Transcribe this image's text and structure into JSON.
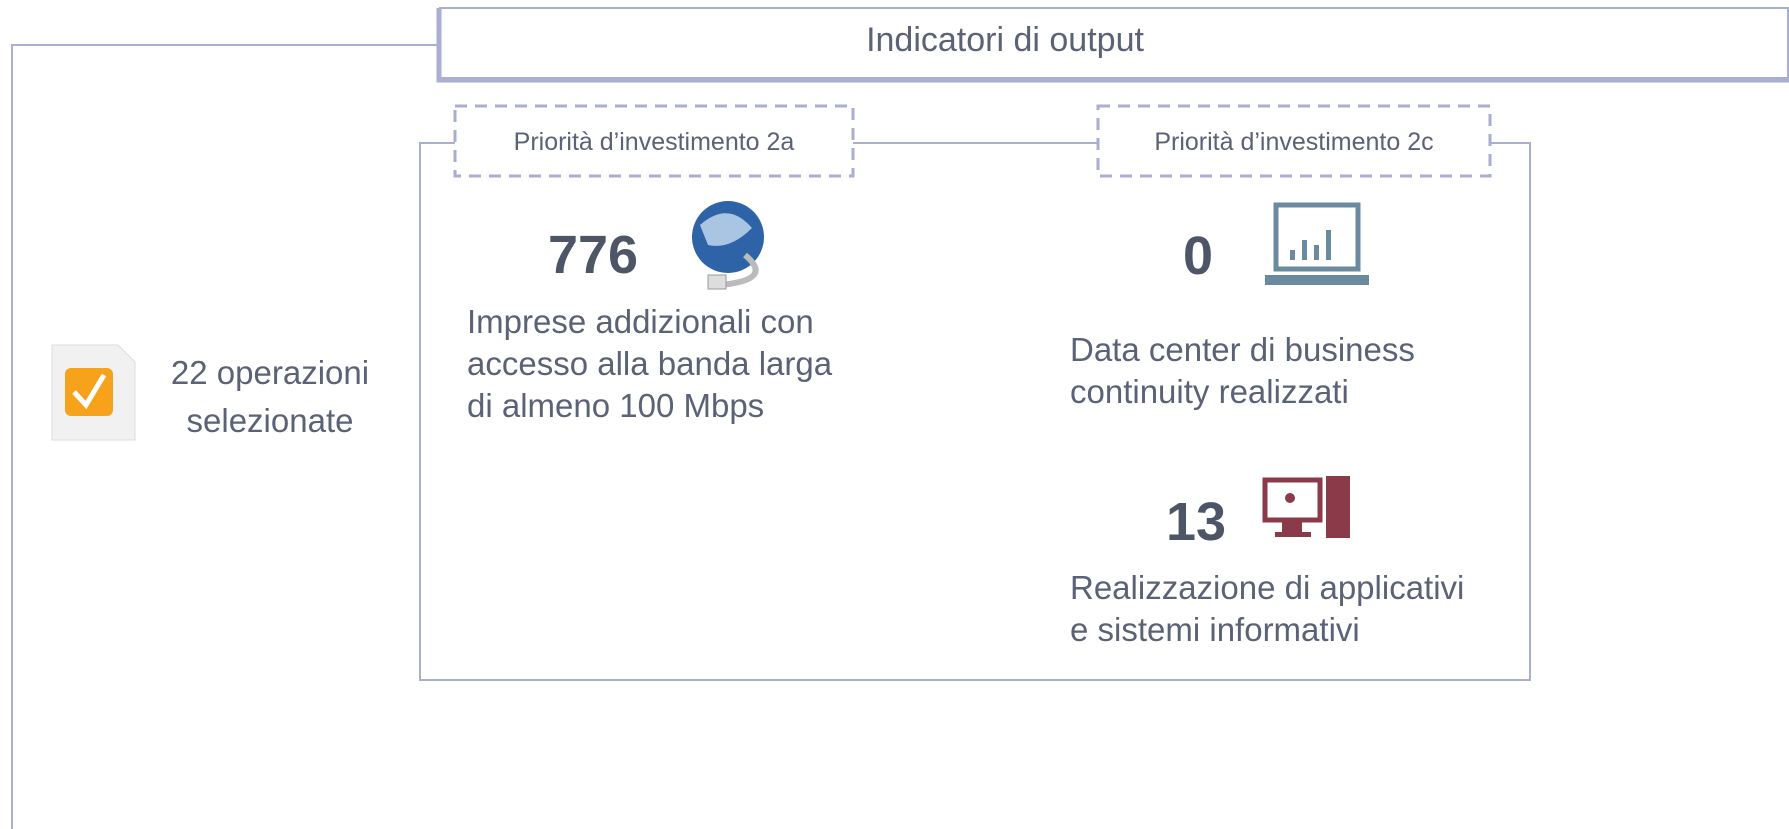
{
  "header": {
    "title": "Indicatori di output"
  },
  "selection": {
    "lines": [
      "22 operazioni",
      "selezionate"
    ]
  },
  "priorities": [
    {
      "label": "Priorità d’investimento 2a",
      "indicators": [
        {
          "value": 776,
          "lines": [
            "Imprese addizionali con",
            "accesso alla banda larga",
            "di almeno 100 Mbps"
          ]
        }
      ]
    },
    {
      "label": "Priorità d’investimento 2c",
      "indicators": [
        {
          "value": 0,
          "lines": [
            "Data center di business",
            "continuity realizzati"
          ]
        },
        {
          "value": 13,
          "lines": [
            "Realizzazione di applicativi",
            "e sistemi informativi"
          ]
        }
      ]
    }
  ]
}
